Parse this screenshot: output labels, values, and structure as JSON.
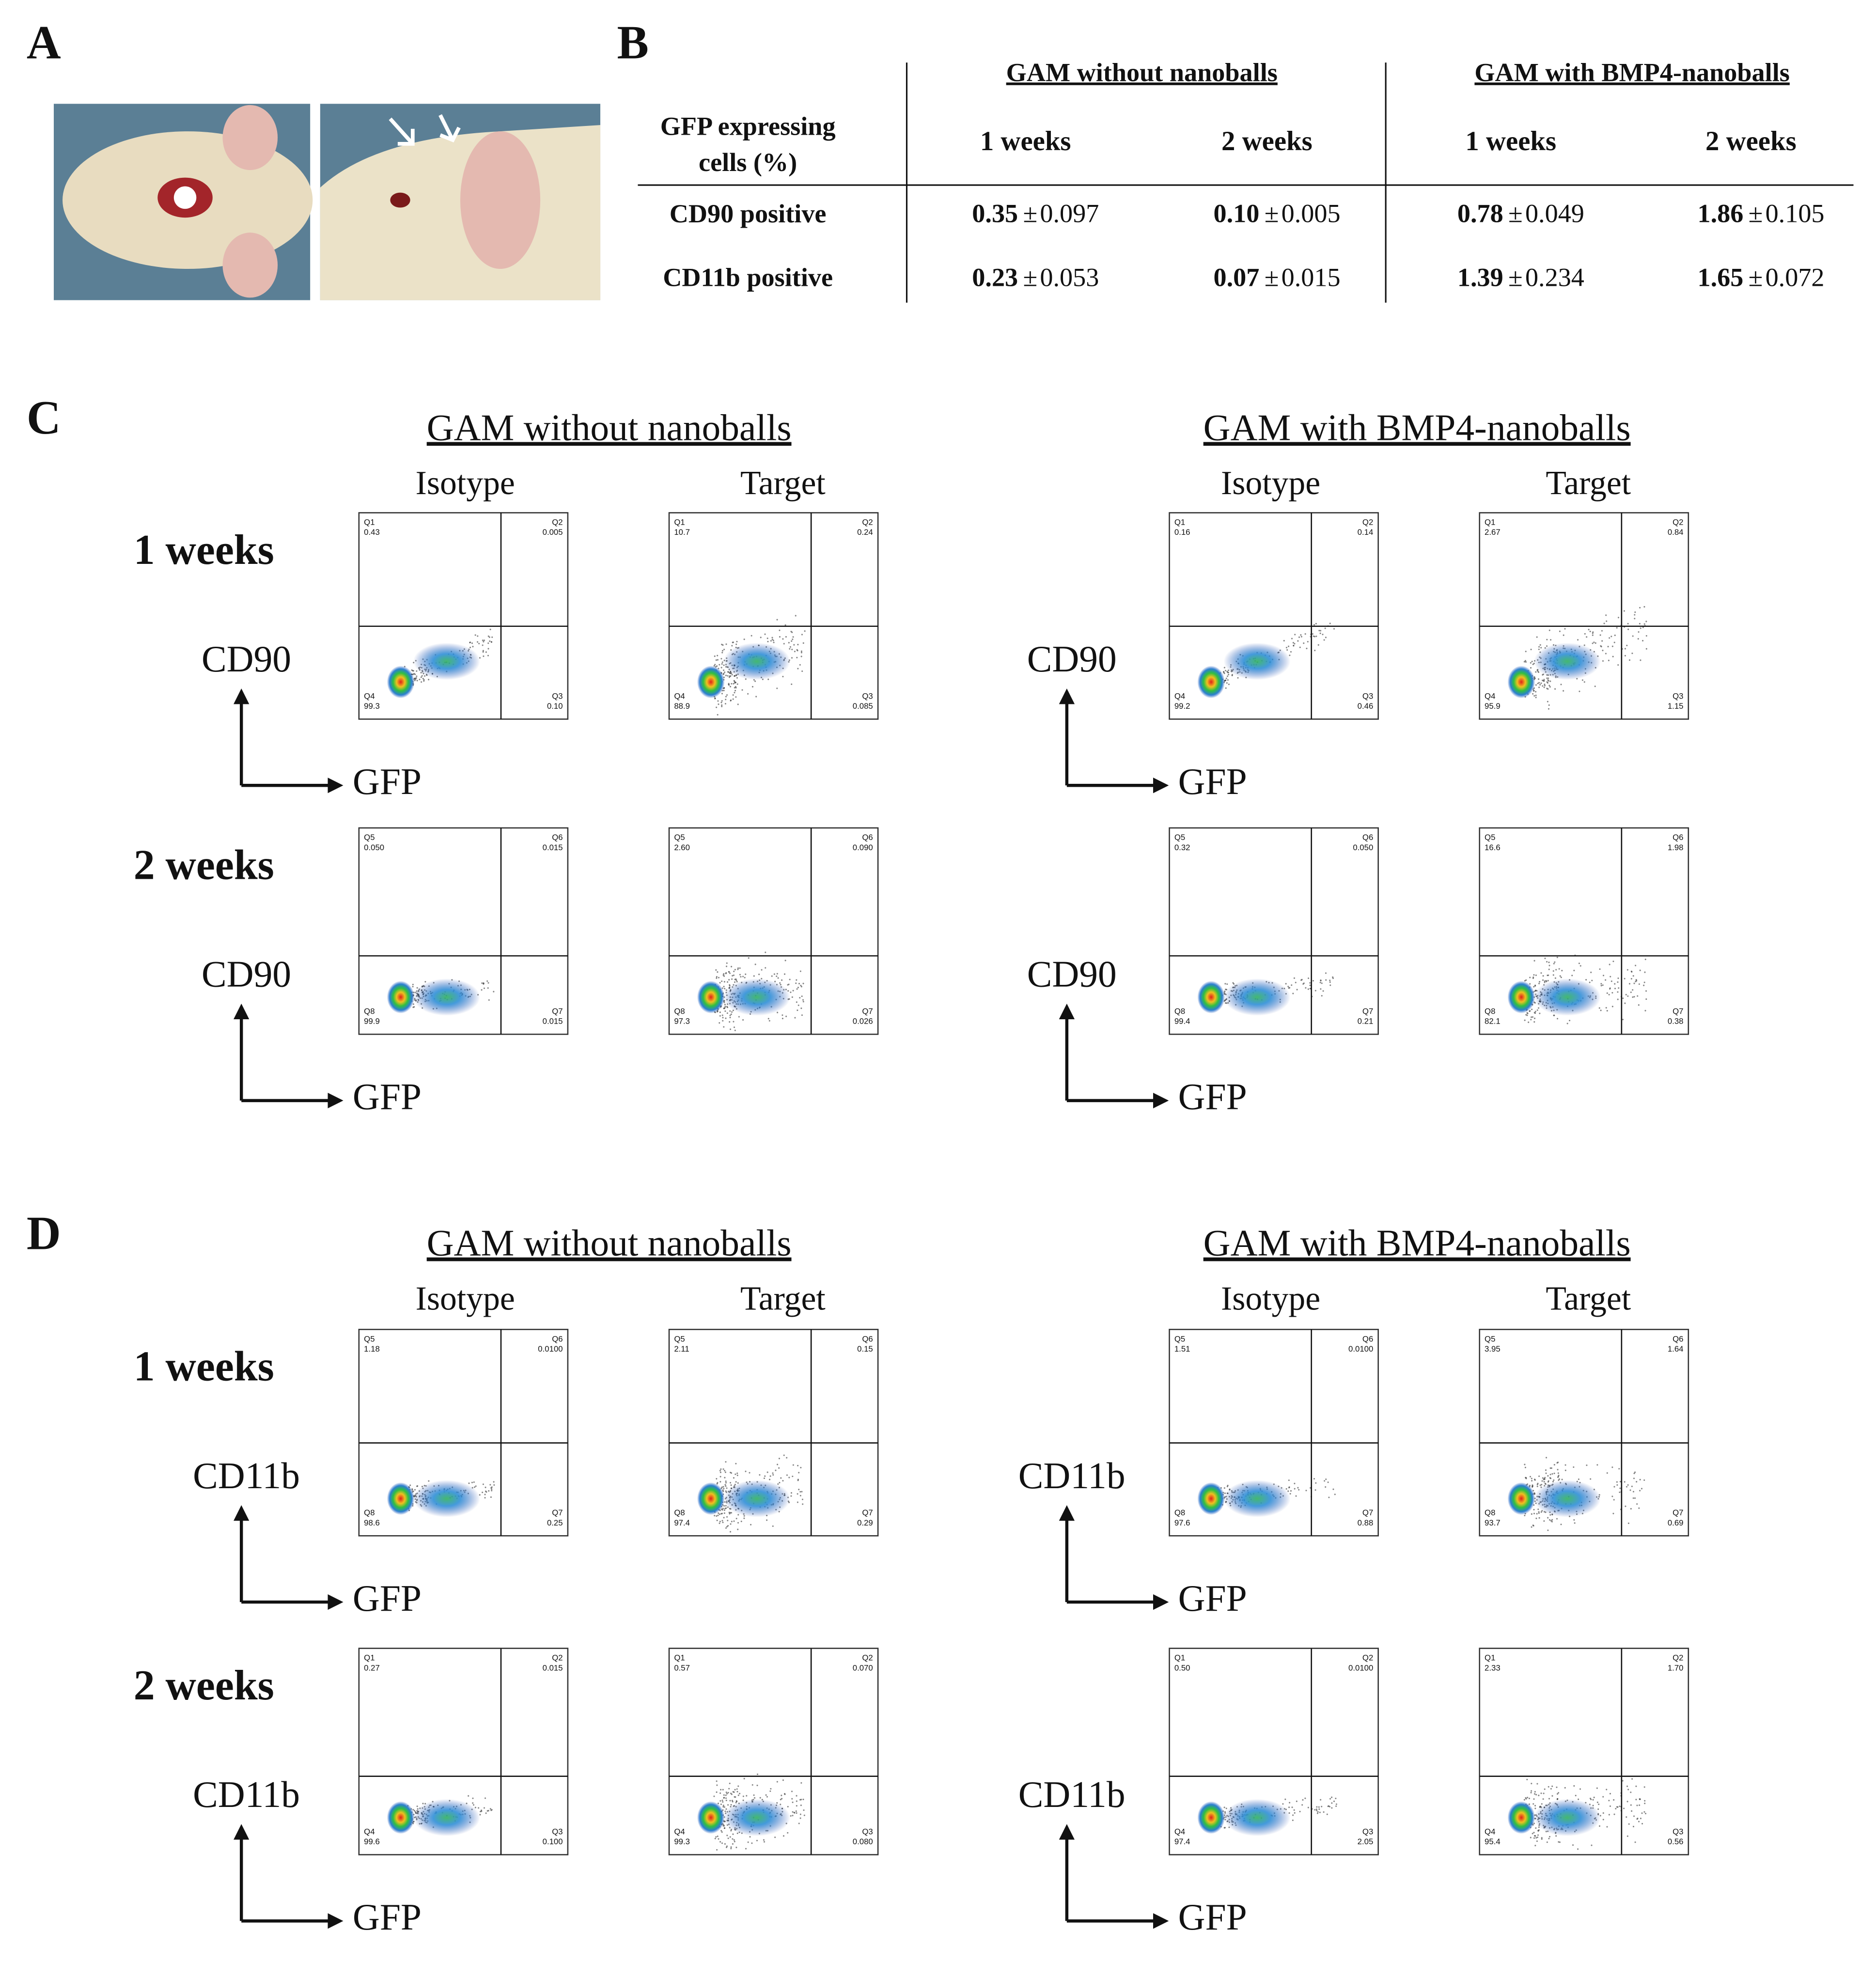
{
  "panel_labels": [
    "A",
    "B",
    "C",
    "D"
  ],
  "table": {
    "corner": [
      "GFP expressing",
      "cells (%)"
    ],
    "groups": [
      "GAM without nanoballs",
      "GAM with BMP4-nanoballs"
    ],
    "columns": [
      "1 weeks",
      "2 weeks",
      "1 weeks",
      "2 weeks"
    ],
    "pm": "±",
    "rows": [
      {
        "label": "CD90 positive",
        "cells": [
          {
            "mean": "0.35",
            "sd": "0.097"
          },
          {
            "mean": "0.10",
            "sd": "0.005"
          },
          {
            "mean": "0.78",
            "sd": "0.049"
          },
          {
            "mean": "1.86",
            "sd": "0.105"
          }
        ]
      },
      {
        "label": "CD11b positive",
        "cells": [
          {
            "mean": "0.23",
            "sd": "0.053"
          },
          {
            "mean": "0.07",
            "sd": "0.015"
          },
          {
            "mean": "1.39",
            "sd": "0.234"
          },
          {
            "mean": "1.65",
            "sd": "0.072"
          }
        ]
      }
    ]
  },
  "flow": {
    "C": {
      "groups": [
        {
          "title": "GAM without nanoballs",
          "subtitles": [
            "Isotype",
            "Target"
          ]
        },
        {
          "title": "GAM with BMP4-nanoballs",
          "subtitles": [
            "Isotype",
            "Target"
          ]
        }
      ],
      "rows": [
        {
          "label": "1 weeks",
          "axes": [
            {
              "y": "CD90",
              "x": "GFP"
            },
            {
              "y": "CD90",
              "x": "GFP"
            }
          ],
          "plots": [
            {
              "quads": [
                {
                  "name": "Q1",
                  "value": "0.43"
                },
                {
                  "name": "Q2",
                  "value": "0.005"
                },
                {
                  "name": "Q3",
                  "value": "0.10"
                },
                {
                  "name": "Q4",
                  "value": "99.3"
                }
              ]
            },
            {
              "quads": [
                {
                  "name": "Q1",
                  "value": "10.7"
                },
                {
                  "name": "Q2",
                  "value": "0.24"
                },
                {
                  "name": "Q3",
                  "value": "0.085"
                },
                {
                  "name": "Q4",
                  "value": "88.9"
                }
              ]
            },
            {
              "quads": [
                {
                  "name": "Q1",
                  "value": "0.16"
                },
                {
                  "name": "Q2",
                  "value": "0.14"
                },
                {
                  "name": "Q3",
                  "value": "0.46"
                },
                {
                  "name": "Q4",
                  "value": "99.2"
                }
              ]
            },
            {
              "quads": [
                {
                  "name": "Q1",
                  "value": "2.67"
                },
                {
                  "name": "Q2",
                  "value": "0.84"
                },
                {
                  "name": "Q3",
                  "value": "1.15"
                },
                {
                  "name": "Q4",
                  "value": "95.9"
                }
              ]
            }
          ]
        },
        {
          "label": "2 weeks",
          "axes": [
            {
              "y": "CD90",
              "x": "GFP"
            },
            {
              "y": "CD90",
              "x": "GFP"
            }
          ],
          "plots": [
            {
              "quads": [
                {
                  "name": "Q5",
                  "value": "0.050"
                },
                {
                  "name": "Q6",
                  "value": "0.015"
                },
                {
                  "name": "Q7",
                  "value": "0.015"
                },
                {
                  "name": "Q8",
                  "value": "99.9"
                }
              ]
            },
            {
              "quads": [
                {
                  "name": "Q5",
                  "value": "2.60"
                },
                {
                  "name": "Q6",
                  "value": "0.090"
                },
                {
                  "name": "Q7",
                  "value": "0.026"
                },
                {
                  "name": "Q8",
                  "value": "97.3"
                }
              ]
            },
            {
              "quads": [
                {
                  "name": "Q5",
                  "value": "0.32"
                },
                {
                  "name": "Q6",
                  "value": "0.050"
                },
                {
                  "name": "Q7",
                  "value": "0.21"
                },
                {
                  "name": "Q8",
                  "value": "99.4"
                }
              ]
            },
            {
              "quads": [
                {
                  "name": "Q5",
                  "value": "16.6"
                },
                {
                  "name": "Q6",
                  "value": "1.98"
                },
                {
                  "name": "Q7",
                  "value": "0.38"
                },
                {
                  "name": "Q8",
                  "value": "82.1"
                }
              ]
            }
          ]
        }
      ]
    },
    "D": {
      "groups": [
        {
          "title": "GAM without nanoballs",
          "subtitles": [
            "Isotype",
            "Target"
          ]
        },
        {
          "title": "GAM with BMP4-nanoballs",
          "subtitles": [
            "Isotype",
            "Target"
          ]
        }
      ],
      "rows": [
        {
          "label": "1 weeks",
          "axes": [
            {
              "y": "CD11b",
              "x": "GFP"
            },
            {
              "y": "CD11b",
              "x": "GFP"
            }
          ],
          "plots": [
            {
              "quads": [
                {
                  "name": "Q5",
                  "value": "1.18"
                },
                {
                  "name": "Q6",
                  "value": "0.0100"
                },
                {
                  "name": "Q7",
                  "value": "0.25"
                },
                {
                  "name": "Q8",
                  "value": "98.6"
                }
              ]
            },
            {
              "quads": [
                {
                  "name": "Q5",
                  "value": "2.11"
                },
                {
                  "name": "Q6",
                  "value": "0.15"
                },
                {
                  "name": "Q7",
                  "value": "0.29"
                },
                {
                  "name": "Q8",
                  "value": "97.4"
                }
              ]
            },
            {
              "quads": [
                {
                  "name": "Q5",
                  "value": "1.51"
                },
                {
                  "name": "Q6",
                  "value": "0.0100"
                },
                {
                  "name": "Q7",
                  "value": "0.88"
                },
                {
                  "name": "Q8",
                  "value": "97.6"
                }
              ]
            },
            {
              "quads": [
                {
                  "name": "Q5",
                  "value": "3.95"
                },
                {
                  "name": "Q6",
                  "value": "1.64"
                },
                {
                  "name": "Q7",
                  "value": "0.69"
                },
                {
                  "name": "Q8",
                  "value": "93.7"
                }
              ]
            }
          ]
        },
        {
          "label": "2 weeks",
          "axes": [
            {
              "y": "CD11b",
              "x": "GFP"
            },
            {
              "y": "CD11b",
              "x": "GFP"
            }
          ],
          "plots": [
            {
              "quads": [
                {
                  "name": "Q1",
                  "value": "0.27"
                },
                {
                  "name": "Q2",
                  "value": "0.015"
                },
                {
                  "name": "Q3",
                  "value": "0.100"
                },
                {
                  "name": "Q4",
                  "value": "99.6"
                }
              ]
            },
            {
              "quads": [
                {
                  "name": "Q1",
                  "value": "0.57"
                },
                {
                  "name": "Q2",
                  "value": "0.070"
                },
                {
                  "name": "Q3",
                  "value": "0.080"
                },
                {
                  "name": "Q4",
                  "value": "99.3"
                }
              ]
            },
            {
              "quads": [
                {
                  "name": "Q1",
                  "value": "0.50"
                },
                {
                  "name": "Q2",
                  "value": "0.0100"
                },
                {
                  "name": "Q3",
                  "value": "2.05"
                },
                {
                  "name": "Q4",
                  "value": "97.4"
                }
              ]
            },
            {
              "quads": [
                {
                  "name": "Q1",
                  "value": "2.33"
                },
                {
                  "name": "Q2",
                  "value": "1.70"
                },
                {
                  "name": "Q3",
                  "value": "0.56"
                },
                {
                  "name": "Q4",
                  "value": "95.4"
                }
              ]
            }
          ]
        }
      ]
    }
  }
}
